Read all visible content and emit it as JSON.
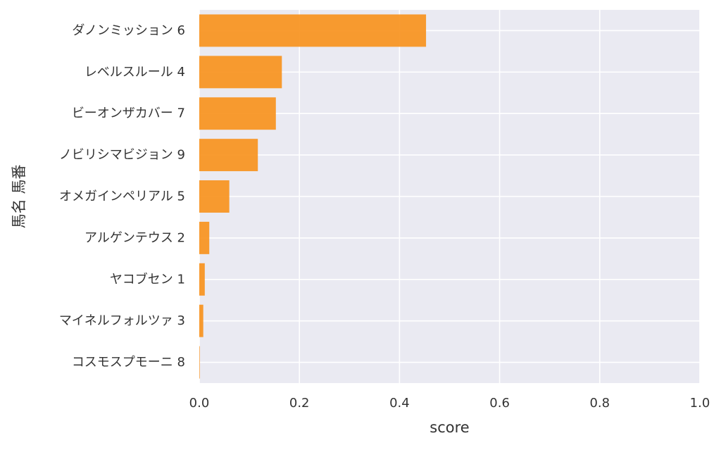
{
  "chart_data": {
    "type": "bar",
    "orientation": "horizontal",
    "categories": [
      "ダノンミッション 6",
      "レベルスルール 4",
      "ビーオンザカバー 7",
      "ノビリシマビジョン 9",
      "オメガインペリアル 5",
      "アルゲンテウス 2",
      "ヤコブセン 1",
      "マイネルフォルツァ 3",
      "コスモスプモーニ 8"
    ],
    "values": [
      0.453,
      0.165,
      0.153,
      0.117,
      0.06,
      0.02,
      0.011,
      0.008,
      0.001
    ],
    "xlabel": "score",
    "ylabel": "馬名 馬番",
    "xlim": [
      0.0,
      1.0
    ],
    "xticks": [
      "0.0",
      "0.2",
      "0.4",
      "0.6",
      "0.8",
      "1.0"
    ],
    "grid": true,
    "colors": {
      "bar": "#f7931e",
      "plot_background": "#eaeaf2",
      "grid": "#ffffff"
    }
  }
}
